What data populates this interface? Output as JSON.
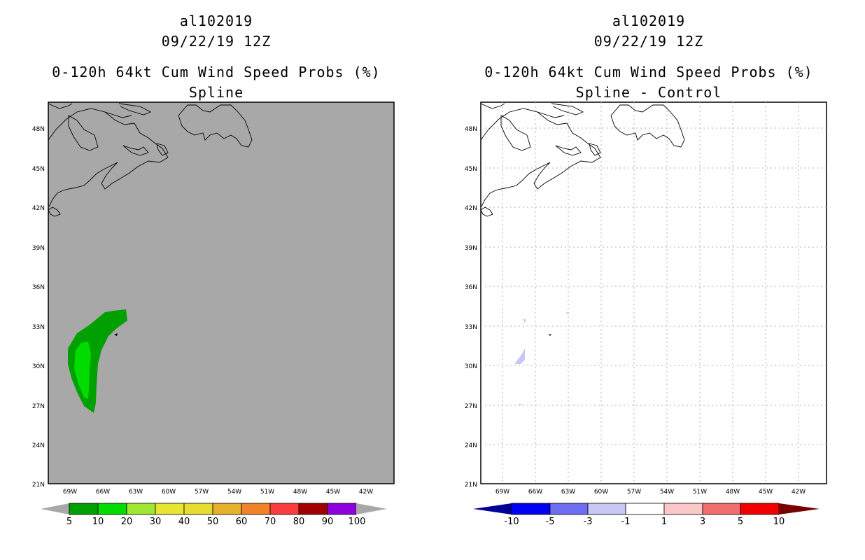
{
  "panels": [
    {
      "storm_id": "al102019",
      "datetime": "09/22/19 12Z",
      "product": "0-120h 64kt Cum Wind Speed Probs (%)",
      "subtitle": "Spline",
      "map_background": "#a8a8a8",
      "lat_labels": [
        "48N",
        "45N",
        "42N",
        "39N",
        "36N",
        "33N",
        "30N",
        "27N",
        "24N",
        "21N"
      ],
      "lon_labels": [
        "69W",
        "66W",
        "63W",
        "60W",
        "57W",
        "54W",
        "51W",
        "48W",
        "45W",
        "42W"
      ],
      "colorbar": {
        "colors": [
          "#a8a8a8",
          "#00a000",
          "#00dc00",
          "#a0e632",
          "#e6e632",
          "#e6dc32",
          "#e6af2d",
          "#f08228",
          "#fa3c3c",
          "#a00000",
          "#8c00dc",
          "#a8a8a8"
        ],
        "labels": [
          "5",
          "10",
          "20",
          "30",
          "40",
          "50",
          "60",
          "70",
          "80",
          "90",
          "100"
        ]
      }
    },
    {
      "storm_id": "al102019",
      "datetime": "09/22/19 12Z",
      "product": "0-120h 64kt Cum Wind Speed Probs (%)",
      "subtitle": "Spline - Control",
      "map_background": "#ffffff",
      "lat_labels": [
        "48N",
        "45N",
        "42N",
        "39N",
        "36N",
        "33N",
        "30N",
        "27N",
        "24N",
        "21N"
      ],
      "lon_labels": [
        "69W",
        "66W",
        "63W",
        "60W",
        "57W",
        "54W",
        "51W",
        "48W",
        "45W",
        "42W"
      ],
      "colorbar": {
        "colors": [
          "#000096",
          "#0000f0",
          "#6e6ef0",
          "#c8c8f5",
          "#ffffff",
          "#fac8c8",
          "#f06e6e",
          "#f00000",
          "#780000"
        ],
        "labels": [
          "-10",
          "-5",
          "-3",
          "-1",
          "1",
          "3",
          "5",
          "10"
        ]
      }
    }
  ]
}
